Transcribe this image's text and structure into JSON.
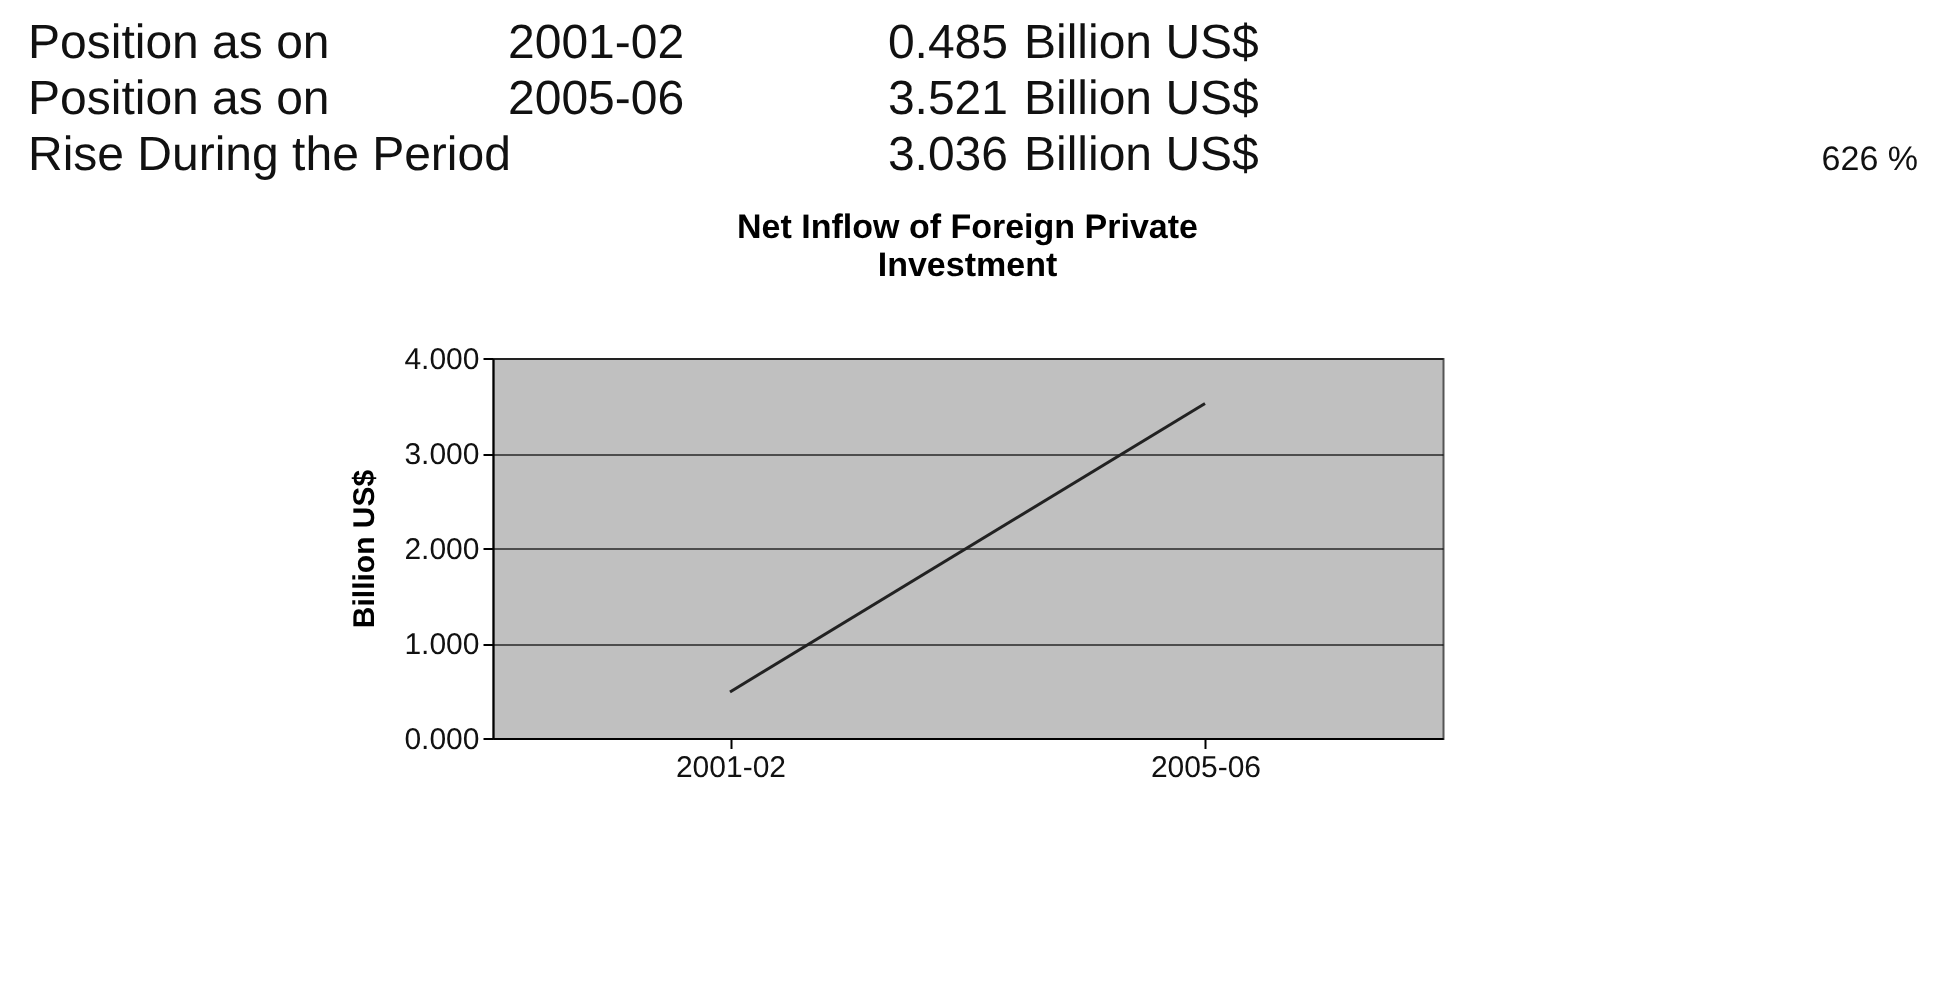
{
  "chart_data": {
    "type": "line",
    "title": "Net Inflow of Foreign Private Investment",
    "ylabel": "Billion US$",
    "categories": [
      "2001-02",
      "2005-06"
    ],
    "series": [
      {
        "color": "#222222",
        "values": [
          0.485,
          3.521
        ]
      }
    ],
    "ylim": [
      0,
      4
    ],
    "yticks": [
      {
        "value": 0,
        "label": "0.000"
      },
      {
        "value": 1,
        "label": "1.000"
      },
      {
        "value": 2,
        "label": "2.000"
      },
      {
        "value": 3,
        "label": "3.000"
      },
      {
        "value": 4,
        "label": "4.000"
      }
    ],
    "grid": "y",
    "legend": false,
    "marker": "none",
    "line_style": "solid",
    "annotations": [
      "Position as on",
      "2001-02",
      "0.485",
      "Billion US$",
      "Position as on",
      "2005-06",
      "3.521",
      "Billion US$",
      "Rise During the Period",
      "3.036",
      "Billion US$",
      "626 %"
    ]
  }
}
